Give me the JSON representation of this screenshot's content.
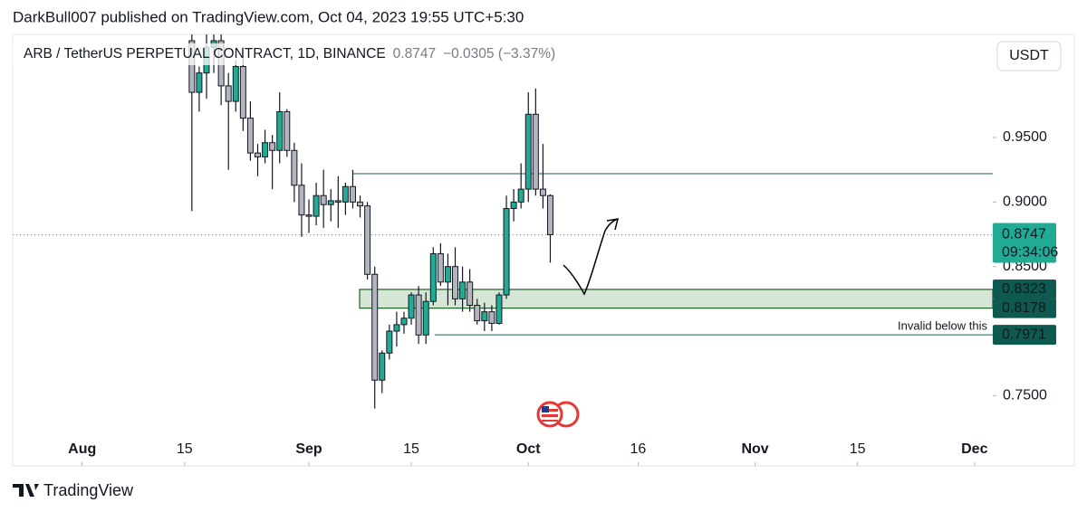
{
  "chart_data": {
    "type": "candlestick",
    "publisher_line": "DarkBull007 published on TradingView.com, Oct 04, 2023 19:55 UTC+5:30",
    "symbol": "ARB / TetherUS PERPETUAL CONTRACT, 1D, BINANCE",
    "change": "−0.0305 (−3.37%)",
    "currency": "USDT",
    "countdown": "09:34:06",
    "brand": "TradingView",
    "annotation": "Invalid below this",
    "up_color": "#22ab94",
    "down_color": "#b2b5be",
    "last_price": 0.8747,
    "resistance": 0.922,
    "zone": [
      0.8323,
      0.8178
    ],
    "invalidation": 0.7971,
    "x": [
      "2023-08-16",
      "2023-08-17",
      "2023-08-18",
      "2023-08-19",
      "2023-08-20",
      "2023-08-21",
      "2023-08-22",
      "2023-08-23",
      "2023-08-24",
      "2023-08-25",
      "2023-08-26",
      "2023-08-27",
      "2023-08-28",
      "2023-08-29",
      "2023-08-30",
      "2023-08-31",
      "2023-09-01",
      "2023-09-02",
      "2023-09-03",
      "2023-09-04",
      "2023-09-05",
      "2023-09-06",
      "2023-09-07",
      "2023-09-08",
      "2023-09-09",
      "2023-09-10",
      "2023-09-11",
      "2023-09-12",
      "2023-09-13",
      "2023-09-14",
      "2023-09-15",
      "2023-09-16",
      "2023-09-17",
      "2023-09-18",
      "2023-09-19",
      "2023-09-20",
      "2023-09-21",
      "2023-09-22",
      "2023-09-23",
      "2023-09-24",
      "2023-09-25",
      "2023-09-26",
      "2023-09-27",
      "2023-09-28",
      "2023-09-29",
      "2023-09-30",
      "2023-10-01",
      "2023-10-02",
      "2023-10-03",
      "2023-10-04"
    ],
    "open": [
      1.025,
      0.985,
      1.0,
      1.02,
      1.025,
      0.99,
      0.978,
      1.005,
      0.965,
      0.938,
      0.935,
      0.946,
      0.94,
      0.97,
      0.94,
      0.913,
      0.89,
      0.889,
      0.905,
      0.898,
      0.901,
      0.9,
      0.912,
      0.9,
      0.897,
      0.844,
      0.762,
      0.783,
      0.8,
      0.805,
      0.81,
      0.828,
      0.797,
      0.823,
      0.86,
      0.838,
      0.85,
      0.825,
      0.838,
      0.82,
      0.808,
      0.815,
      0.806,
      0.828,
      0.895,
      0.9,
      0.91,
      0.968,
      0.91,
      0.905
    ],
    "high": [
      1.03,
      1.005,
      1.03,
      1.03,
      1.03,
      1.0,
      1.01,
      1.02,
      0.978,
      0.945,
      0.956,
      0.952,
      0.985,
      0.972,
      0.946,
      0.93,
      0.902,
      0.915,
      0.925,
      0.91,
      0.92,
      0.915,
      0.925,
      0.905,
      0.9,
      0.85,
      0.785,
      0.805,
      0.815,
      0.815,
      0.83,
      0.835,
      0.83,
      0.865,
      0.868,
      0.86,
      0.865,
      0.85,
      0.848,
      0.825,
      0.822,
      0.82,
      0.83,
      0.905,
      0.91,
      0.93,
      0.985,
      0.988,
      0.945,
      0.906
    ],
    "low": [
      0.893,
      0.97,
      0.98,
      1.0,
      0.975,
      0.925,
      0.97,
      0.955,
      0.932,
      0.92,
      0.93,
      0.91,
      0.93,
      0.935,
      0.9,
      0.873,
      0.876,
      0.882,
      0.88,
      0.885,
      0.88,
      0.89,
      0.895,
      0.888,
      0.84,
      0.74,
      0.752,
      0.778,
      0.788,
      0.798,
      0.805,
      0.79,
      0.79,
      0.82,
      0.835,
      0.82,
      0.82,
      0.815,
      0.815,
      0.805,
      0.8,
      0.8,
      0.805,
      0.825,
      0.885,
      0.895,
      0.9,
      0.905,
      0.895,
      0.853
    ],
    "close": [
      0.985,
      1.0,
      1.02,
      1.025,
      0.99,
      0.978,
      1.005,
      0.965,
      0.938,
      0.935,
      0.946,
      0.94,
      0.97,
      0.94,
      0.913,
      0.89,
      0.889,
      0.905,
      0.898,
      0.901,
      0.9,
      0.912,
      0.9,
      0.897,
      0.844,
      0.762,
      0.783,
      0.8,
      0.805,
      0.81,
      0.828,
      0.797,
      0.823,
      0.86,
      0.838,
      0.85,
      0.825,
      0.838,
      0.82,
      0.808,
      0.815,
      0.806,
      0.828,
      0.895,
      0.9,
      0.91,
      0.968,
      0.91,
      0.905,
      0.8747
    ],
    "xlim": [
      "2023-07-22T12:00:00Z",
      "2023-12-03T12:00:00Z"
    ],
    "xticks": [
      {
        "value": "2023-08-01",
        "label": "Aug"
      },
      {
        "value": "2023-08-15",
        "label": "15"
      },
      {
        "value": "2023-09-01",
        "label": "Sep"
      },
      {
        "value": "2023-09-15",
        "label": "15"
      },
      {
        "value": "2023-10-01",
        "label": "Oct"
      },
      {
        "value": "2023-10-16",
        "label": "16"
      },
      {
        "value": "2023-11-01",
        "label": "Nov"
      },
      {
        "value": "2023-11-15",
        "label": "15"
      },
      {
        "value": "2023-12-01",
        "label": "Dec"
      }
    ],
    "ylim": [
      0.6956,
      1.0299
    ],
    "yticks": [
      {
        "value": 0.75,
        "label": "0.7500"
      },
      {
        "value": 0.85,
        "label": "0.8500"
      },
      {
        "value": 0.9,
        "label": "0.9000"
      },
      {
        "value": 0.95,
        "label": "0.9500"
      }
    ]
  }
}
